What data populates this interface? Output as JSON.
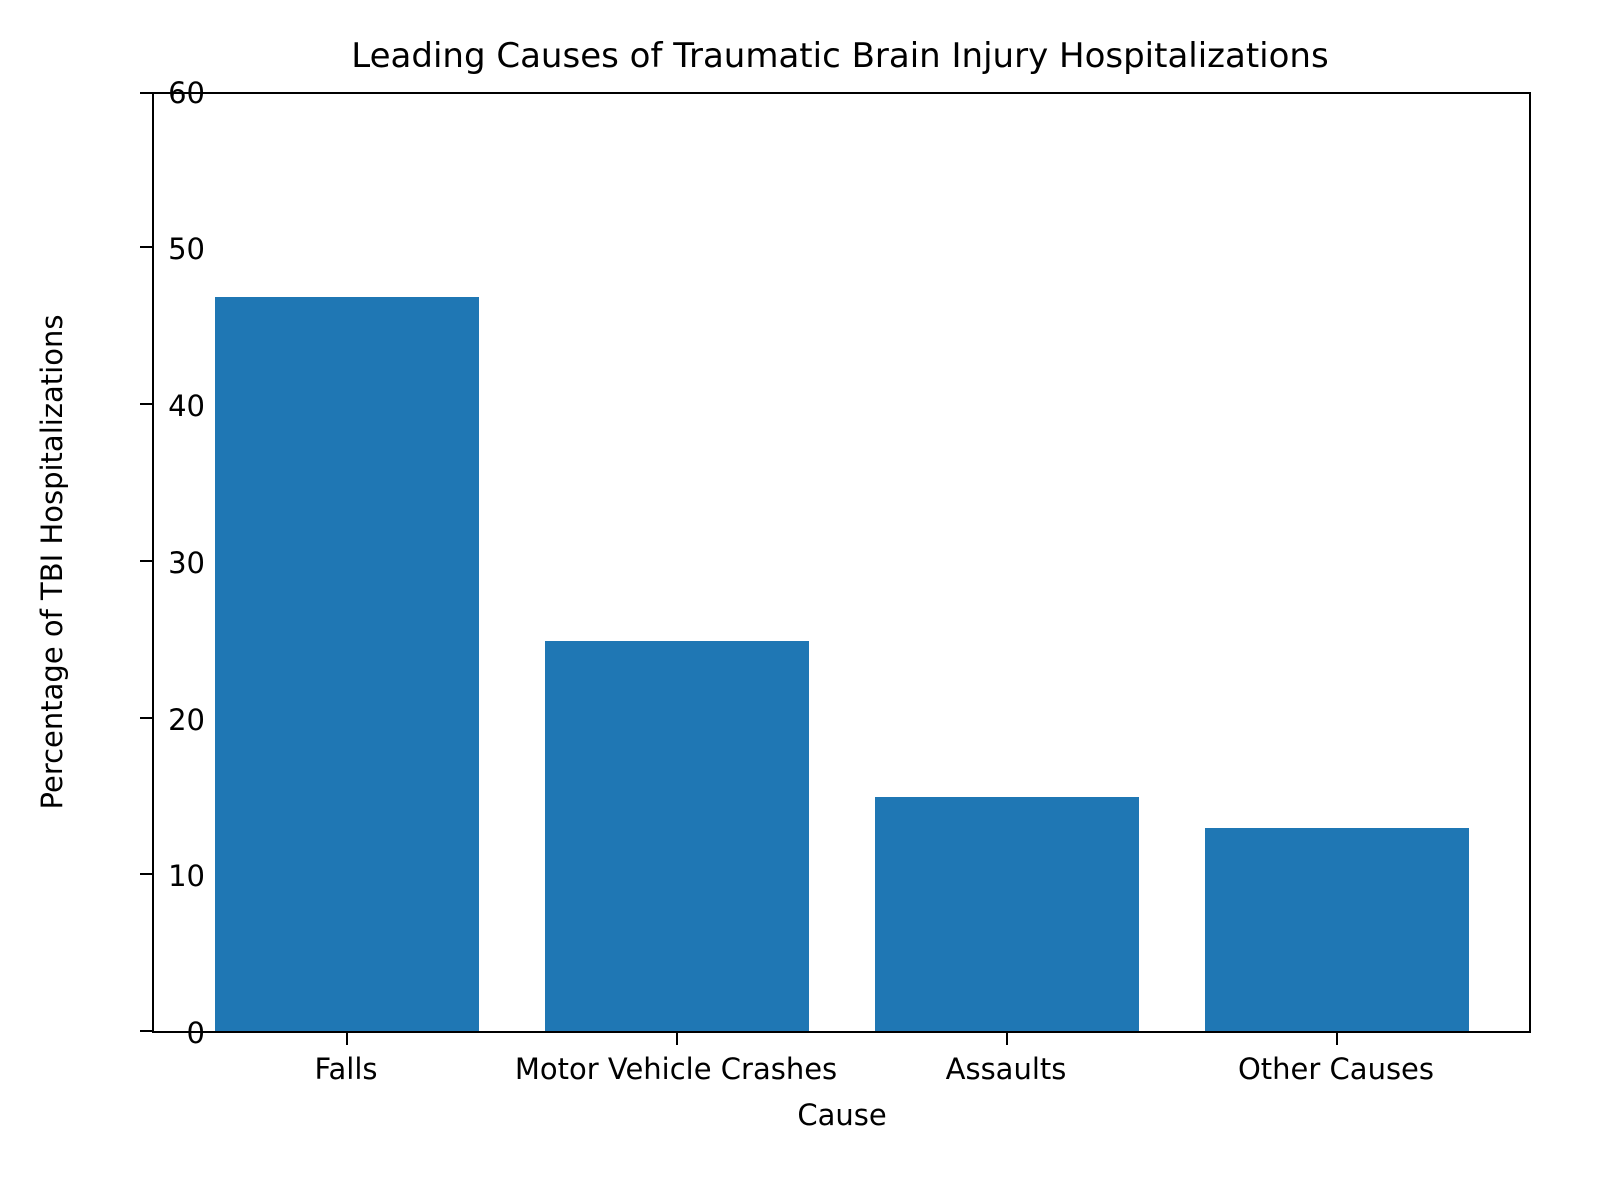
{
  "chart_data": {
    "type": "bar",
    "title": "Leading Causes of Traumatic Brain Injury Hospitalizations",
    "xlabel": "Cause",
    "ylabel": "Percentage of TBI Hospitalizations",
    "categories": [
      "Falls",
      "Motor Vehicle Crashes",
      "Assaults",
      "Other Causes"
    ],
    "values": [
      47,
      25,
      15,
      13
    ],
    "ylim": [
      0,
      60
    ],
    "yticks": [
      0,
      10,
      20,
      30,
      40,
      50,
      60
    ],
    "grid": false,
    "legend": null,
    "bar_color": "#1f77b4"
  }
}
